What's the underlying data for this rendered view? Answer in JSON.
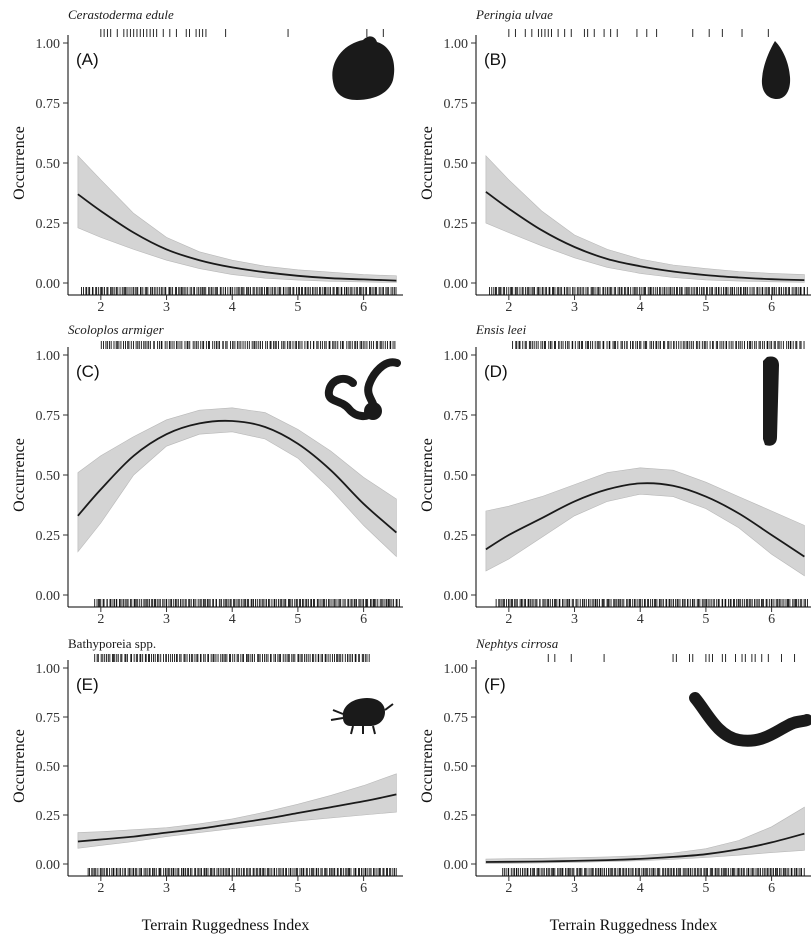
{
  "chart_data": [
    {
      "type": "line",
      "panel_label": "(A)",
      "title": "Cerastoderma edule",
      "italic_title": true,
      "ylabel": "Occurrence",
      "xlabel": "",
      "xlim": [
        1.5,
        6.6
      ],
      "ylim": [
        0,
        1
      ],
      "x_ticks": [
        2,
        3,
        4,
        5,
        6
      ],
      "y_ticks": [
        0.0,
        0.25,
        0.5,
        0.75,
        1.0
      ],
      "y_tick_labels": [
        "0.00",
        "0.25",
        "0.50",
        "0.75",
        "1.00"
      ],
      "fit": {
        "x": [
          1.65,
          2.0,
          2.5,
          3.0,
          3.5,
          4.0,
          4.5,
          5.0,
          5.5,
          6.0,
          6.5
        ],
        "y": [
          0.37,
          0.3,
          0.21,
          0.14,
          0.095,
          0.065,
          0.045,
          0.03,
          0.02,
          0.015,
          0.01
        ],
        "lower": [
          0.23,
          0.19,
          0.14,
          0.095,
          0.06,
          0.035,
          0.02,
          0.012,
          0.007,
          0.004,
          0.002
        ],
        "upper": [
          0.53,
          0.43,
          0.29,
          0.19,
          0.13,
          0.095,
          0.07,
          0.055,
          0.045,
          0.035,
          0.03
        ]
      },
      "rug_presence": [
        2.0,
        2.05,
        2.1,
        2.15,
        2.25,
        2.35,
        2.4,
        2.45,
        2.5,
        2.55,
        2.6,
        2.65,
        2.7,
        2.75,
        2.8,
        2.85,
        2.95,
        3.05,
        3.15,
        3.3,
        3.35,
        3.45,
        3.5,
        3.55,
        3.6,
        3.9,
        4.85,
        6.05,
        6.3
      ],
      "rug_absence_range": [
        1.7,
        6.5
      ],
      "silhouette": "cockle-shell-icon"
    },
    {
      "type": "line",
      "panel_label": "(B)",
      "title": "Peringia ulvae",
      "italic_title": true,
      "ylabel": "Occurrence",
      "xlabel": "",
      "xlim": [
        1.5,
        6.6
      ],
      "ylim": [
        0,
        1
      ],
      "x_ticks": [
        2,
        3,
        4,
        5,
        6
      ],
      "y_ticks": [
        0.0,
        0.25,
        0.5,
        0.75,
        1.0
      ],
      "y_tick_labels": [
        "0.00",
        "0.25",
        "0.50",
        "0.75",
        "1.00"
      ],
      "fit": {
        "x": [
          1.65,
          2.0,
          2.5,
          3.0,
          3.5,
          4.0,
          4.5,
          5.0,
          5.5,
          6.0,
          6.5
        ],
        "y": [
          0.38,
          0.31,
          0.22,
          0.15,
          0.1,
          0.07,
          0.048,
          0.033,
          0.023,
          0.016,
          0.012
        ],
        "lower": [
          0.25,
          0.21,
          0.155,
          0.105,
          0.065,
          0.04,
          0.023,
          0.013,
          0.008,
          0.005,
          0.003
        ],
        "upper": [
          0.53,
          0.43,
          0.3,
          0.2,
          0.14,
          0.1,
          0.075,
          0.06,
          0.048,
          0.04,
          0.035
        ]
      },
      "rug_presence": [
        2.0,
        2.1,
        2.25,
        2.35,
        2.45,
        2.5,
        2.55,
        2.6,
        2.65,
        2.75,
        2.85,
        2.95,
        3.15,
        3.2,
        3.3,
        3.45,
        3.55,
        3.65,
        3.95,
        4.1,
        4.25,
        4.8,
        5.05,
        5.25,
        5.55,
        5.95
      ],
      "rug_absence_range": [
        1.7,
        6.55
      ],
      "silhouette": "mudsnail-icon"
    },
    {
      "type": "line",
      "panel_label": "(C)",
      "title": "Scoloplos armiger",
      "italic_title": true,
      "ylabel": "Occurrence",
      "xlabel": "",
      "xlim": [
        1.5,
        6.6
      ],
      "ylim": [
        0,
        1
      ],
      "x_ticks": [
        2,
        3,
        4,
        5,
        6
      ],
      "y_ticks": [
        0.0,
        0.25,
        0.5,
        0.75,
        1.0
      ],
      "y_tick_labels": [
        "0.00",
        "0.25",
        "0.50",
        "0.75",
        "1.00"
      ],
      "fit": {
        "x": [
          1.65,
          2.0,
          2.5,
          3.0,
          3.5,
          4.0,
          4.5,
          5.0,
          5.5,
          6.0,
          6.5
        ],
        "y": [
          0.33,
          0.44,
          0.58,
          0.67,
          0.715,
          0.725,
          0.7,
          0.63,
          0.52,
          0.38,
          0.26
        ],
        "lower": [
          0.18,
          0.3,
          0.5,
          0.62,
          0.67,
          0.68,
          0.65,
          0.57,
          0.44,
          0.29,
          0.16
        ],
        "upper": [
          0.51,
          0.58,
          0.66,
          0.73,
          0.77,
          0.78,
          0.76,
          0.69,
          0.6,
          0.49,
          0.4
        ]
      },
      "rug_presence_range": [
        2.0,
        6.5
      ],
      "rug_absence_range": [
        1.9,
        6.55
      ],
      "silhouette": "bristle-worm-icon"
    },
    {
      "type": "line",
      "panel_label": "(D)",
      "title": "Ensis leei",
      "italic_title": true,
      "ylabel": "Occurrence",
      "xlabel": "",
      "xlim": [
        1.5,
        6.6
      ],
      "ylim": [
        0,
        1
      ],
      "x_ticks": [
        2,
        3,
        4,
        5,
        6
      ],
      "y_ticks": [
        0.0,
        0.25,
        0.5,
        0.75,
        1.0
      ],
      "y_tick_labels": [
        "0.00",
        "0.25",
        "0.50",
        "0.75",
        "1.00"
      ],
      "fit": {
        "x": [
          1.65,
          2.0,
          2.5,
          3.0,
          3.5,
          4.0,
          4.5,
          5.0,
          5.5,
          6.0,
          6.5
        ],
        "y": [
          0.19,
          0.25,
          0.32,
          0.39,
          0.44,
          0.465,
          0.455,
          0.41,
          0.34,
          0.25,
          0.16
        ],
        "lower": [
          0.1,
          0.15,
          0.24,
          0.33,
          0.39,
          0.42,
          0.41,
          0.36,
          0.28,
          0.17,
          0.08
        ],
        "upper": [
          0.35,
          0.37,
          0.41,
          0.46,
          0.51,
          0.53,
          0.52,
          0.47,
          0.41,
          0.35,
          0.29
        ]
      },
      "rug_presence_range": [
        2.05,
        6.5
      ],
      "rug_absence_range": [
        1.8,
        6.55
      ],
      "silhouette": "razor-clam-icon"
    },
    {
      "type": "line",
      "panel_label": "(E)",
      "title": "Bathyporeia spp.",
      "italic_title": false,
      "ylabel": "Occurrence",
      "xlabel": "Terrain Ruggedness Index",
      "xlim": [
        1.5,
        6.6
      ],
      "ylim": [
        0,
        1
      ],
      "x_ticks": [
        2,
        3,
        4,
        5,
        6
      ],
      "y_ticks": [
        0.0,
        0.25,
        0.5,
        0.75,
        1.0
      ],
      "y_tick_labels": [
        "0.00",
        "0.25",
        "0.50",
        "0.75",
        "1.00"
      ],
      "fit": {
        "x": [
          1.65,
          2.0,
          2.5,
          3.0,
          3.5,
          4.0,
          4.5,
          5.0,
          5.5,
          6.0,
          6.5
        ],
        "y": [
          0.115,
          0.125,
          0.14,
          0.16,
          0.18,
          0.205,
          0.23,
          0.26,
          0.29,
          0.32,
          0.355
        ],
        "lower": [
          0.08,
          0.095,
          0.115,
          0.14,
          0.16,
          0.18,
          0.2,
          0.22,
          0.235,
          0.25,
          0.265
        ],
        "upper": [
          0.16,
          0.165,
          0.175,
          0.185,
          0.205,
          0.23,
          0.265,
          0.305,
          0.35,
          0.4,
          0.46
        ]
      },
      "rug_presence_range": [
        1.9,
        6.1
      ],
      "rug_absence_range": [
        1.8,
        6.5
      ],
      "silhouette": "amphipod-icon"
    },
    {
      "type": "line",
      "panel_label": "(F)",
      "title": "Nephtys cirrosa",
      "italic_title": true,
      "ylabel": "Occurrence",
      "xlabel": "Terrain Ruggedness Index",
      "xlim": [
        1.5,
        6.6
      ],
      "ylim": [
        0,
        1
      ],
      "x_ticks": [
        2,
        3,
        4,
        5,
        6
      ],
      "y_ticks": [
        0.0,
        0.25,
        0.5,
        0.75,
        1.0
      ],
      "y_tick_labels": [
        "0.00",
        "0.25",
        "0.50",
        "0.75",
        "1.00"
      ],
      "fit": {
        "x": [
          1.65,
          2.0,
          2.5,
          3.0,
          3.5,
          4.0,
          4.5,
          5.0,
          5.5,
          6.0,
          6.5
        ],
        "y": [
          0.01,
          0.011,
          0.013,
          0.016,
          0.02,
          0.026,
          0.036,
          0.05,
          0.075,
          0.11,
          0.155
        ],
        "lower": [
          0.002,
          0.003,
          0.005,
          0.008,
          0.012,
          0.017,
          0.024,
          0.033,
          0.045,
          0.058,
          0.07
        ],
        "upper": [
          0.025,
          0.027,
          0.029,
          0.032,
          0.036,
          0.043,
          0.056,
          0.078,
          0.12,
          0.19,
          0.29
        ]
      },
      "rug_presence": [
        2.6,
        2.7,
        2.95,
        3.45,
        4.5,
        4.55,
        4.75,
        4.8,
        5.0,
        5.05,
        5.1,
        5.25,
        5.3,
        5.45,
        5.55,
        5.6,
        5.7,
        5.75,
        5.85,
        5.95,
        6.15,
        6.35
      ],
      "rug_absence_range": [
        1.9,
        6.5
      ],
      "silhouette": "polychaete-worm-icon"
    }
  ]
}
